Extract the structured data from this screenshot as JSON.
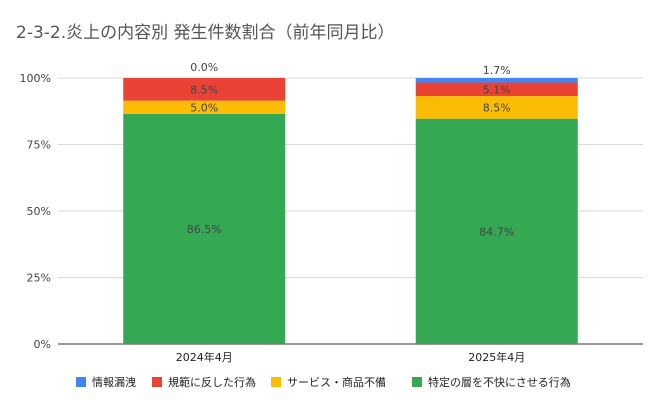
{
  "chart_data": {
    "type": "bar",
    "stacked": true,
    "title": "2-3-2.炎上の内容別 発生件数割合（前年同月比）",
    "categories": [
      "2024年4月",
      "2025年4月"
    ],
    "series": [
      {
        "name": "特定の層を不快にさせる行為",
        "color": "#34a853",
        "values": [
          86.5,
          84.7
        ],
        "labels": [
          "86.5%",
          "84.7%"
        ]
      },
      {
        "name": "サービス・商品不備",
        "color": "#fbbc04",
        "values": [
          5.0,
          8.5
        ],
        "labels": [
          "5.0%",
          "8.5%"
        ]
      },
      {
        "name": "規範に反した行為",
        "color": "#ea4335",
        "values": [
          8.5,
          5.1
        ],
        "labels": [
          "8.5%",
          "5.1%"
        ]
      },
      {
        "name": "情報漏洩",
        "color": "#4285f4",
        "values": [
          0.0,
          1.7
        ],
        "labels": [
          "0.0%",
          "1.7%"
        ]
      }
    ],
    "legend_order": [
      "情報漏洩",
      "規範に反した行為",
      "サービス・商品不備",
      "特定の層を不快にさせる行為"
    ],
    "yticks": [
      "0%",
      "25%",
      "50%",
      "75%",
      "100%"
    ],
    "ylim": [
      0,
      100
    ],
    "grid": true,
    "legend_position": "bottom"
  }
}
